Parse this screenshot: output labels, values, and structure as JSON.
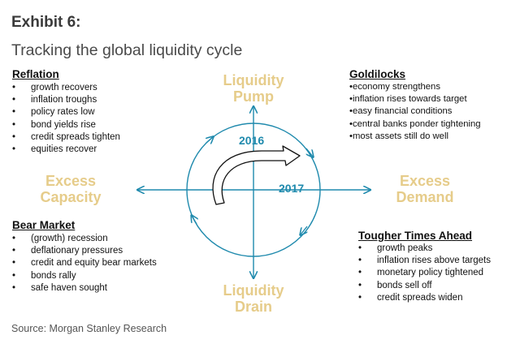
{
  "exhibit": "Exhibit 6:",
  "subtitle": "Tracking the global liquidity cycle",
  "source": "Source: Morgan Stanley Research",
  "axis_labels": {
    "top": [
      "Liquidity",
      "Pump"
    ],
    "bottom": [
      "Liquidity",
      "Drain"
    ],
    "left": [
      "Excess",
      "Capacity"
    ],
    "right": [
      "Excess",
      "Demand"
    ]
  },
  "years": {
    "first": "2016",
    "second": "2017"
  },
  "quadrants": {
    "reflation": {
      "title": "Reflation",
      "items": [
        "growth recovers",
        "inflation troughs",
        "policy rates low",
        "bond yields rise",
        "credit spreads tighten",
        "equities recover"
      ]
    },
    "goldilocks": {
      "title": "Goldilocks",
      "items": [
        "•economy strengthens",
        "•inflation rises towards target",
        "•easy financial conditions",
        "•central banks ponder tightening",
        "•most assets still do well"
      ]
    },
    "bear_market": {
      "title": "Bear Market",
      "items": [
        "(growth) recession",
        "deflationary pressures",
        "credit and equity bear markets",
        "bonds rally",
        "safe haven sought"
      ]
    },
    "tougher_times": {
      "title": "Tougher Times Ahead",
      "items": [
        "growth peaks",
        "inflation rises above targets",
        "monetary policy tightened",
        "bonds sell off",
        "credit spreads widen"
      ]
    }
  },
  "colors": {
    "axis": "#1f8aad",
    "label_gold": "#e6cc8a"
  }
}
